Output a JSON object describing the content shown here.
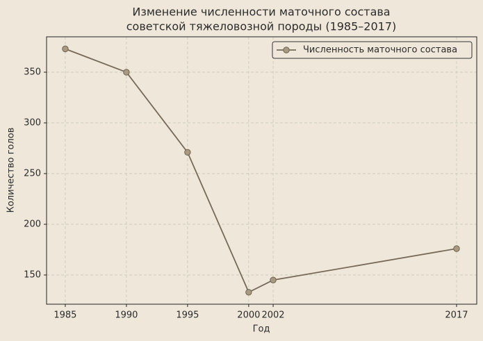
{
  "chart_data": {
    "type": "line",
    "title": [
      "Изменение численности маточного состава",
      "советской тяжеловозной породы (1985–2017)"
    ],
    "x_label": "Год",
    "y_label": "Количество голов",
    "x": [
      1985,
      1990,
      1995,
      2000,
      2002,
      2017
    ],
    "series": [
      {
        "name": "Численность маточного состава",
        "color": "#756a5a",
        "marker_color": "#a89a80",
        "values": [
          373,
          350,
          271,
          133,
          145,
          176
        ]
      }
    ],
    "xlim": [
      1983.47,
      2018.65
    ],
    "xticks": [
      1985,
      1990,
      1995,
      2000,
      2002,
      2017
    ],
    "ylim": [
      121.2,
      384.9
    ],
    "yticks": [
      150,
      200,
      250,
      300,
      350
    ],
    "grid": true,
    "legend": "upper right"
  }
}
